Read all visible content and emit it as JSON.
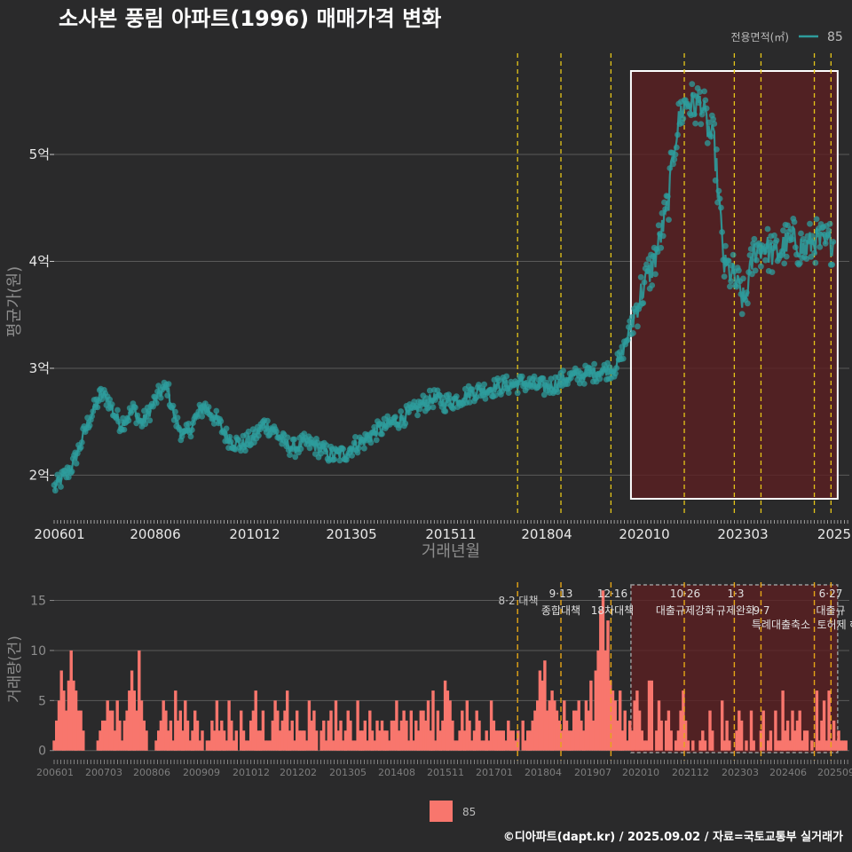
{
  "title": "소사본 풍림 아파트(1996) 매매가격 변화",
  "caption": "©디아파트(dapt.kr) / 2025.09.02 / 자료=국토교통부 실거래가",
  "colors": {
    "price": "#2e9c9c",
    "volume": "#f8766d",
    "policy_line": "#e6c619",
    "highlight_fill": "#5b1f22"
  },
  "legend_top": {
    "title": "전용면적(㎡)",
    "label": "85"
  },
  "legend_bottom": {
    "label": "85"
  },
  "chart_data": [
    {
      "type": "line",
      "name": "price",
      "xlabel": "거래년월",
      "ylabel": "평균가(원)",
      "x_ticks": [
        "200601",
        "200806",
        "201012",
        "201305",
        "201511",
        "201804",
        "202010",
        "202303",
        "2025"
      ],
      "y_ticks": [
        {
          "value": 2,
          "label": "2억"
        },
        {
          "value": 3,
          "label": "3억"
        },
        {
          "value": 4,
          "label": "4억"
        },
        {
          "value": 5,
          "label": "5억"
        }
      ],
      "ylim": [
        1.63,
        5.98
      ],
      "highlight_range": [
        "2020-06",
        "2025-08"
      ],
      "policy_dates": [
        "2017-08",
        "2018-09",
        "2019-12",
        "2021-10",
        "2023-01",
        "2023-09",
        "2025-01",
        "2025-06"
      ],
      "series": [
        {
          "points": [
            [
              "2006-01",
              1.88
            ],
            [
              "2006-03",
              1.95
            ],
            [
              "2006-05",
              2.02
            ],
            [
              "2006-07",
              2.12
            ],
            [
              "2006-09",
              2.3
            ],
            [
              "2006-11",
              2.48
            ],
            [
              "2007-01",
              2.62
            ],
            [
              "2007-03",
              2.75
            ],
            [
              "2007-05",
              2.72
            ],
            [
              "2007-07",
              2.58
            ],
            [
              "2007-09",
              2.48
            ],
            [
              "2007-11",
              2.55
            ],
            [
              "2008-01",
              2.62
            ],
            [
              "2008-03",
              2.48
            ],
            [
              "2008-05",
              2.56
            ],
            [
              "2008-07",
              2.68
            ],
            [
              "2008-09",
              2.78
            ],
            [
              "2008-11",
              2.82
            ],
            [
              "2009-01",
              2.55
            ],
            [
              "2009-04",
              2.35
            ],
            [
              "2009-07",
              2.5
            ],
            [
              "2009-10",
              2.65
            ],
            [
              "2010-01",
              2.55
            ],
            [
              "2010-05",
              2.35
            ],
            [
              "2010-09",
              2.28
            ],
            [
              "2011-01",
              2.35
            ],
            [
              "2011-04",
              2.48
            ],
            [
              "2011-07",
              2.42
            ],
            [
              "2011-10",
              2.3
            ],
            [
              "2012-01",
              2.25
            ],
            [
              "2012-04",
              2.3
            ],
            [
              "2012-07",
              2.28
            ],
            [
              "2012-10",
              2.22
            ],
            [
              "2013-01",
              2.18
            ],
            [
              "2013-04",
              2.2
            ],
            [
              "2013-07",
              2.28
            ],
            [
              "2013-10",
              2.32
            ],
            [
              "2014-01",
              2.4
            ],
            [
              "2014-04",
              2.45
            ],
            [
              "2014-07",
              2.5
            ],
            [
              "2014-10",
              2.55
            ],
            [
              "2015-01",
              2.6
            ],
            [
              "2015-04",
              2.68
            ],
            [
              "2015-07",
              2.72
            ],
            [
              "2015-10",
              2.68
            ],
            [
              "2016-01",
              2.7
            ],
            [
              "2016-04",
              2.74
            ],
            [
              "2016-07",
              2.78
            ],
            [
              "2016-10",
              2.8
            ],
            [
              "2017-01",
              2.82
            ],
            [
              "2017-04",
              2.84
            ],
            [
              "2017-07",
              2.85
            ],
            [
              "2017-10",
              2.86
            ],
            [
              "2018-01",
              2.84
            ],
            [
              "2018-04",
              2.82
            ],
            [
              "2018-07",
              2.85
            ],
            [
              "2018-10",
              2.9
            ],
            [
              "2019-01",
              2.92
            ],
            [
              "2019-04",
              2.94
            ],
            [
              "2019-07",
              2.96
            ],
            [
              "2019-10",
              2.98
            ],
            [
              "2020-01",
              3.0
            ],
            [
              "2020-03",
              3.1
            ],
            [
              "2020-05",
              3.3
            ],
            [
              "2020-07",
              3.5
            ],
            [
              "2020-09",
              3.7
            ],
            [
              "2020-11",
              3.85
            ],
            [
              "2021-01",
              4.0
            ],
            [
              "2021-03",
              4.25
            ],
            [
              "2021-05",
              4.5
            ],
            [
              "2021-07",
              5.1
            ],
            [
              "2021-09",
              5.4
            ],
            [
              "2021-11",
              5.5
            ],
            [
              "2022-01",
              5.45
            ],
            [
              "2022-03",
              5.5
            ],
            [
              "2022-05",
              5.25
            ],
            [
              "2022-07",
              5.1
            ],
            [
              "2022-10",
              3.95
            ],
            [
              "2023-01",
              3.85
            ],
            [
              "2023-04",
              3.6
            ],
            [
              "2023-07",
              4.1
            ],
            [
              "2023-10",
              4.15
            ],
            [
              "2024-01",
              4.05
            ],
            [
              "2024-04",
              4.15
            ],
            [
              "2024-07",
              4.2
            ],
            [
              "2024-10",
              4.1
            ],
            [
              "2025-01",
              4.2
            ],
            [
              "2025-04",
              4.15
            ],
            [
              "2025-07",
              4.2
            ]
          ]
        }
      ]
    },
    {
      "type": "bar",
      "name": "volume",
      "ylabel": "거래량(건)",
      "x_ticks": [
        "200601",
        "200703",
        "200806",
        "200909",
        "201012",
        "201202",
        "201305",
        "201408",
        "201511",
        "201701",
        "201804",
        "201907",
        "202010",
        "202112",
        "202303",
        "202406",
        "202509"
      ],
      "y_ticks": [
        0,
        5,
        10,
        15
      ],
      "ylim": [
        -1,
        17
      ],
      "highlight_range": [
        "2020-06",
        "2025-08"
      ],
      "values": [
        1,
        3,
        5,
        8,
        6,
        4,
        7,
        10,
        7,
        6,
        4,
        4,
        2,
        0,
        0,
        0,
        0,
        0,
        1,
        2,
        3,
        3,
        5,
        4,
        4,
        2,
        5,
        3,
        1,
        3,
        4,
        6,
        8,
        6,
        4,
        10,
        5,
        3,
        2,
        0,
        0,
        0,
        1,
        2,
        3,
        5,
        4,
        2,
        3,
        1,
        6,
        3,
        4,
        2,
        5,
        3,
        1,
        2,
        4,
        3,
        1,
        2,
        0,
        1,
        1,
        3,
        2,
        5,
        2,
        3,
        2,
        1,
        5,
        3,
        1,
        2,
        0,
        4,
        2,
        1,
        1,
        3,
        4,
        6,
        2,
        2,
        4,
        1,
        1,
        1,
        3,
        5,
        4,
        2,
        3,
        4,
        6,
        2,
        3,
        1,
        4,
        2,
        2,
        2,
        1,
        5,
        3,
        4,
        2,
        0,
        2,
        3,
        1,
        3,
        4,
        1,
        5,
        2,
        3,
        1,
        2,
        4,
        3,
        1,
        1,
        5,
        2,
        2,
        3,
        1,
        4,
        2,
        1,
        3,
        2,
        3,
        2,
        2,
        1,
        3,
        3,
        5,
        2,
        3,
        4,
        3,
        1,
        4,
        1,
        3,
        2,
        4,
        4,
        3,
        5,
        2,
        6,
        1,
        4,
        2,
        3,
        7,
        6,
        5,
        3,
        1,
        1,
        2,
        4,
        2,
        5,
        3,
        1,
        2,
        4,
        3,
        1,
        1,
        2,
        1,
        5,
        3,
        2,
        2,
        2,
        2,
        1,
        3,
        2,
        2,
        1,
        2,
        0,
        3,
        1,
        2,
        2,
        3,
        4,
        5,
        8,
        7,
        9,
        4,
        5,
        6,
        5,
        4,
        3,
        2,
        5,
        3,
        2,
        2,
        4,
        4,
        5,
        3,
        2,
        5,
        4,
        7,
        3,
        8,
        10,
        14,
        16,
        10,
        13,
        7,
        6,
        5,
        3,
        6,
        2,
        4,
        1,
        3,
        2,
        5,
        6,
        4,
        2,
        1,
        1,
        7,
        7,
        0,
        2,
        5,
        3,
        0,
        3,
        4,
        2,
        0,
        1,
        2,
        4,
        6,
        3,
        1,
        0,
        1,
        0,
        0,
        1,
        2,
        1,
        0,
        4,
        2,
        0,
        0,
        0,
        5,
        1,
        3,
        1,
        0,
        0,
        2,
        4,
        3,
        0,
        1,
        0,
        4,
        1,
        0,
        0,
        2,
        4,
        0,
        1,
        2,
        0,
        4,
        1,
        1,
        6,
        2,
        3,
        1,
        4,
        2,
        3,
        4,
        1,
        2,
        2,
        0,
        1,
        0,
        6,
        1,
        3,
        5,
        1,
        6,
        1,
        3,
        1,
        2,
        1,
        1,
        1
      ]
    }
  ],
  "policies": [
    {
      "date": "8·2 대책",
      "name": "",
      "side": "left"
    },
    {
      "date": "9·13",
      "name": "종합대책",
      "side": "center"
    },
    {
      "date": "12·16",
      "name": "18차대책",
      "side": "center"
    },
    {
      "date": "10·26",
      "name": "대출규제강화",
      "side": "center"
    },
    {
      "date": "1·3",
      "name": "규제완화",
      "side": "center"
    },
    {
      "date": "9·7",
      "name": "특례대출축소",
      "side": "center"
    },
    {
      "date": "",
      "name": "토허제 해제",
      "side": "center"
    },
    {
      "date": "6·27",
      "name": "대출규",
      "side": "center"
    }
  ]
}
